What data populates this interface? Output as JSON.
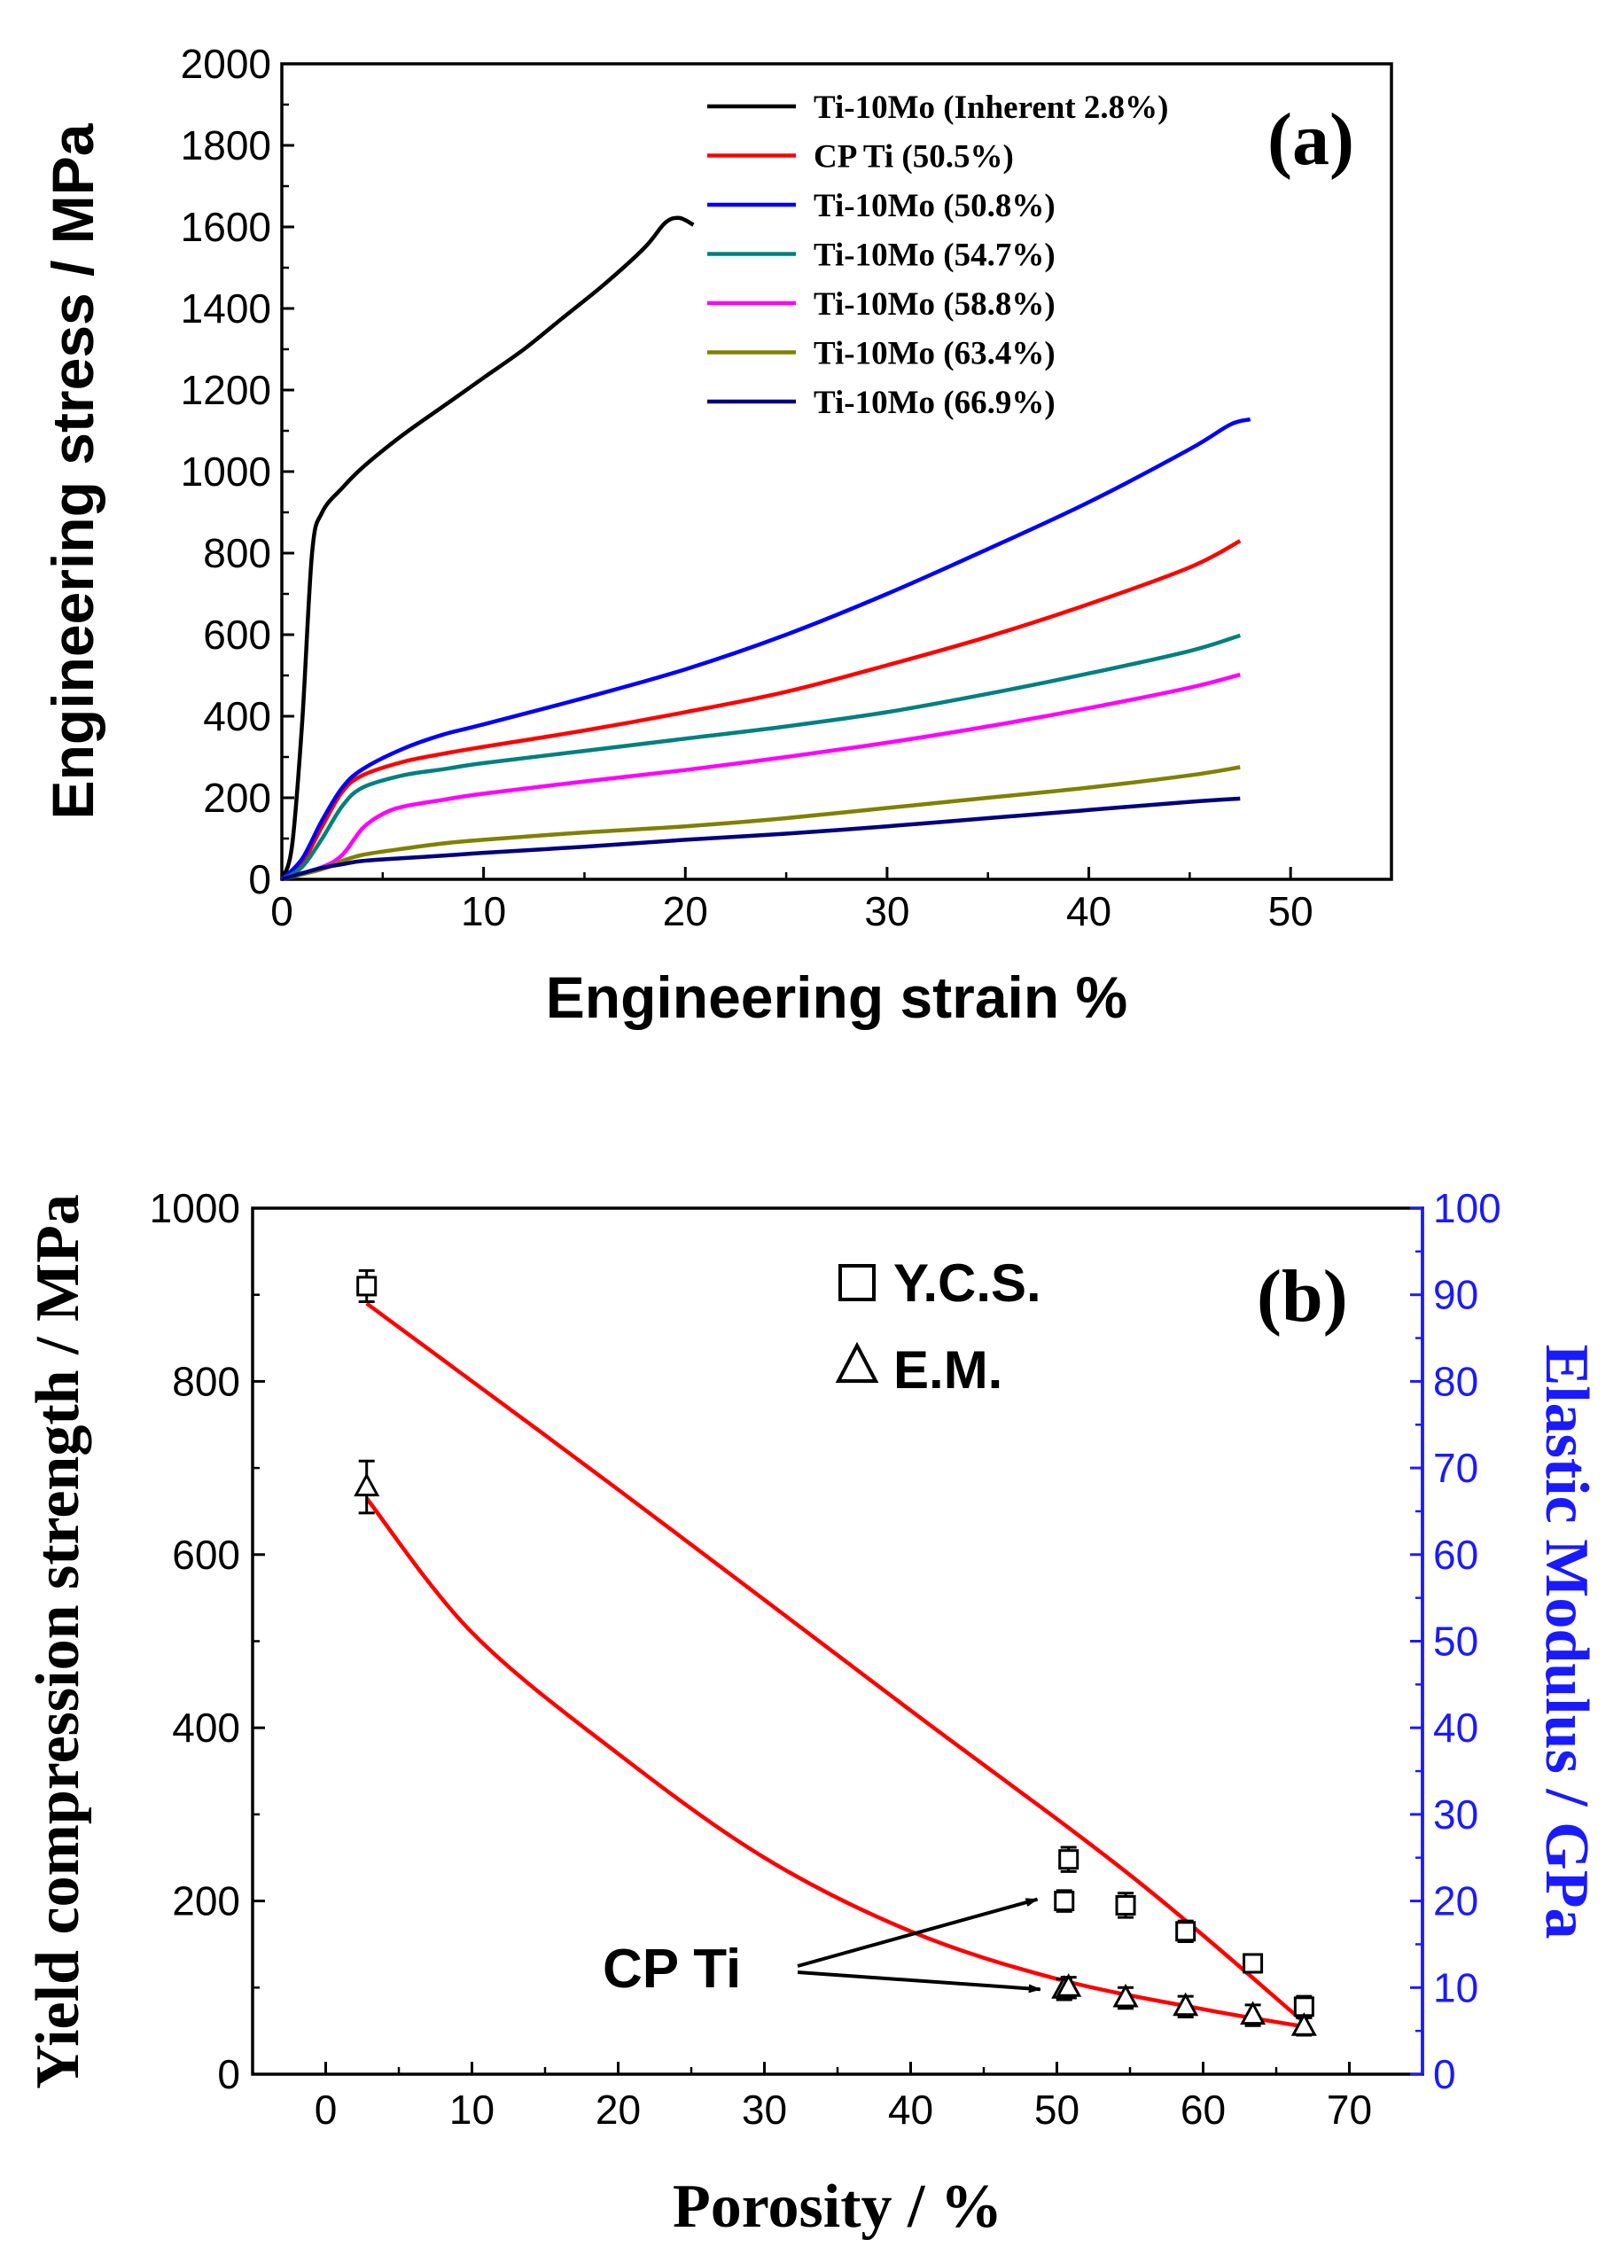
{
  "chart_data": [
    {
      "type": "line",
      "panel": "(a)",
      "xlabel": "Engineering strain %",
      "ylabel": "Engineering stress / MPa",
      "xlim": [
        0,
        55
      ],
      "ylim": [
        0,
        2000
      ],
      "xticks": [
        0,
        10,
        20,
        30,
        40,
        50
      ],
      "yticks": [
        0,
        200,
        400,
        600,
        800,
        1000,
        1200,
        1400,
        1600,
        1800,
        2000
      ],
      "legend_position": "top-right",
      "series": [
        {
          "name": "Ti-10Mo (Inherent 2.8%)",
          "color": "#000000",
          "points": [
            [
              0,
              0
            ],
            [
              0.5,
              80
            ],
            [
              1,
              380
            ],
            [
              1.5,
              800
            ],
            [
              2,
              900
            ],
            [
              3,
              960
            ],
            [
              4,
              1010
            ],
            [
              6,
              1090
            ],
            [
              8,
              1160
            ],
            [
              10,
              1230
            ],
            [
              12,
              1300
            ],
            [
              14,
              1380
            ],
            [
              16,
              1460
            ],
            [
              18,
              1550
            ],
            [
              19,
              1610
            ],
            [
              19.7,
              1622
            ],
            [
              20.4,
              1605
            ]
          ]
        },
        {
          "name": "CP Ti (50.5%)",
          "color": "#ff0000",
          "points": [
            [
              0,
              0
            ],
            [
              1,
              40
            ],
            [
              2,
              130
            ],
            [
              3,
              215
            ],
            [
              4,
              255
            ],
            [
              6,
              288
            ],
            [
              8,
              308
            ],
            [
              10,
              325
            ],
            [
              15,
              365
            ],
            [
              20,
              410
            ],
            [
              25,
              460
            ],
            [
              30,
              525
            ],
            [
              35,
              595
            ],
            [
              40,
              675
            ],
            [
              45,
              765
            ],
            [
              47.5,
              830
            ]
          ]
        },
        {
          "name": "Ti-10Mo (50.8%)",
          "color": "#0000ff",
          "points": [
            [
              0,
              0
            ],
            [
              1,
              50
            ],
            [
              2,
              145
            ],
            [
              3,
              225
            ],
            [
              4,
              270
            ],
            [
              6,
              320
            ],
            [
              8,
              355
            ],
            [
              10,
              380
            ],
            [
              15,
              445
            ],
            [
              20,
              515
            ],
            [
              25,
              600
            ],
            [
              30,
              700
            ],
            [
              35,
              810
            ],
            [
              40,
              925
            ],
            [
              45,
              1055
            ],
            [
              47,
              1115
            ],
            [
              48,
              1128
            ]
          ]
        },
        {
          "name": "Ti-10Mo (54.7%)",
          "color": "#008080",
          "points": [
            [
              0,
              0
            ],
            [
              1,
              30
            ],
            [
              2,
              100
            ],
            [
              3,
              180
            ],
            [
              4,
              225
            ],
            [
              6,
              255
            ],
            [
              8,
              270
            ],
            [
              10,
              285
            ],
            [
              15,
              315
            ],
            [
              20,
              345
            ],
            [
              25,
              375
            ],
            [
              30,
              410
            ],
            [
              35,
              455
            ],
            [
              40,
              505
            ],
            [
              45,
              560
            ],
            [
              47.5,
              598
            ]
          ]
        },
        {
          "name": "Ti-10Mo (58.8%)",
          "color": "#ff00ff",
          "points": [
            [
              0,
              0
            ],
            [
              2,
              30
            ],
            [
              3,
              60
            ],
            [
              4,
              125
            ],
            [
              5,
              160
            ],
            [
              6,
              178
            ],
            [
              8,
              195
            ],
            [
              10,
              210
            ],
            [
              15,
              240
            ],
            [
              20,
              268
            ],
            [
              25,
              300
            ],
            [
              30,
              335
            ],
            [
              35,
              375
            ],
            [
              40,
              420
            ],
            [
              45,
              470
            ],
            [
              47.5,
              502
            ]
          ]
        },
        {
          "name": "Ti-10Mo (63.4%)",
          "color": "#808000",
          "points": [
            [
              0,
              0
            ],
            [
              2,
              25
            ],
            [
              3,
              45
            ],
            [
              4,
              60
            ],
            [
              6,
              75
            ],
            [
              8,
              88
            ],
            [
              10,
              97
            ],
            [
              15,
              115
            ],
            [
              20,
              130
            ],
            [
              25,
              150
            ],
            [
              30,
              175
            ],
            [
              35,
              200
            ],
            [
              40,
              225
            ],
            [
              45,
              255
            ],
            [
              47.5,
              275
            ]
          ]
        },
        {
          "name": "Ti-10Mo (66.9%)",
          "color": "#000080",
          "points": [
            [
              0,
              0
            ],
            [
              1,
              15
            ],
            [
              2,
              28
            ],
            [
              3,
              37
            ],
            [
              4,
              45
            ],
            [
              6,
              52
            ],
            [
              8,
              58
            ],
            [
              10,
              65
            ],
            [
              15,
              80
            ],
            [
              20,
              97
            ],
            [
              25,
              112
            ],
            [
              30,
              130
            ],
            [
              35,
              150
            ],
            [
              40,
              170
            ],
            [
              45,
              190
            ],
            [
              47.5,
              198
            ]
          ]
        }
      ]
    },
    {
      "type": "scatter",
      "panel": "(b)",
      "xlabel": "Porosity / %",
      "ylabel": "Yield compression strength / MPa",
      "y2label": "Elastic Modulus / GPa",
      "xlim": [
        -5,
        75
      ],
      "ylim": [
        0,
        1000
      ],
      "y2lim": [
        0,
        100
      ],
      "xticks": [
        0,
        10,
        20,
        30,
        40,
        50,
        60,
        70
      ],
      "yticks": [
        0,
        200,
        400,
        600,
        800,
        1000
      ],
      "y2ticks": [
        0,
        10,
        20,
        30,
        40,
        50,
        60,
        70,
        80,
        90,
        100
      ],
      "y2_color": "#1a1aff",
      "legend": [
        "Y.C.S.",
        "E.M."
      ],
      "legend_position": "top-right",
      "ycs": {
        "x": [
          2.8,
          50.5,
          50.8,
          54.7,
          58.8,
          63.4,
          66.9
        ],
        "y": [
          910,
          200,
          248,
          195,
          165,
          128,
          78
        ],
        "err": [
          18,
          12,
          14,
          14,
          12,
          10,
          12
        ]
      },
      "em_mpa_scale": {
        "x": [
          2.8,
          50.5,
          50.8,
          54.7,
          58.8,
          63.4,
          66.9
        ],
        "y": [
          678,
          98,
          100,
          88,
          78,
          68,
          55
        ],
        "err": [
          30,
          12,
          12,
          12,
          12,
          12,
          10
        ]
      },
      "ycs_fit": {
        "x": [
          2.8,
          20,
          40,
          55,
          66.9
        ],
        "y": [
          890,
          675,
          420,
          230,
          60
        ]
      },
      "em_fit": {
        "x": [
          2.8,
          10,
          20,
          30,
          40,
          50,
          60,
          66.9
        ],
        "y": [
          665,
          510,
          370,
          250,
          165,
          110,
          75,
          55
        ]
      },
      "annotation": {
        "text": "CP Ti",
        "points_to": [
          [
            50.0,
            202
          ],
          [
            50.2,
            98
          ]
        ]
      }
    }
  ]
}
